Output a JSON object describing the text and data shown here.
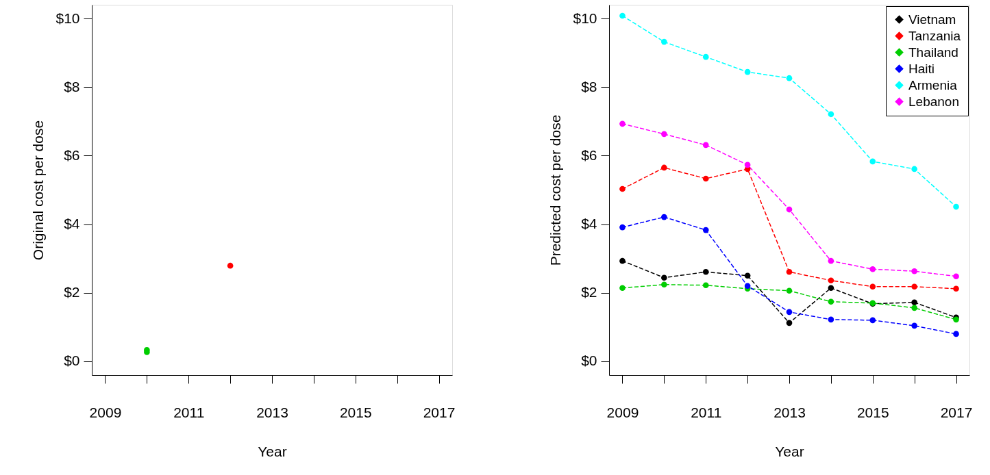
{
  "chart_data": [
    {
      "type": "scatter",
      "xlabel": "Year",
      "ylabel": "Original cost per dose",
      "marker": "circle",
      "grid": false,
      "legend": false,
      "xlim": [
        2008.68,
        2017.32
      ],
      "ylim": [
        -0.4,
        10.4
      ],
      "xticks": [
        2009,
        {
          "value": 2010,
          "label": null
        },
        2011,
        {
          "value": 2012,
          "label": null
        },
        2013,
        {
          "value": 2014,
          "label": null
        },
        2015,
        {
          "value": 2016,
          "label": null
        },
        2017
      ],
      "yticks": [
        {
          "value": 0,
          "label": "$0"
        },
        {
          "value": 2,
          "label": "$2"
        },
        {
          "value": 4,
          "label": "$4"
        },
        {
          "value": 6,
          "label": "$6"
        },
        {
          "value": 8,
          "label": "$8"
        },
        {
          "value": 10,
          "label": "$10"
        }
      ],
      "x": [
        2010,
        2012
      ],
      "series": [
        {
          "color": "#00cd00",
          "values": [
            0.27,
            null
          ]
        },
        {
          "color": "#00cd00",
          "values": [
            0.33,
            null
          ]
        },
        {
          "color": "#ff0000",
          "values": [
            null,
            2.79
          ]
        }
      ]
    },
    {
      "type": "line",
      "xlabel": "Year",
      "ylabel": "Predicted cost per dose",
      "marker": "circle",
      "line_style": "dashed",
      "grid": false,
      "legend": "top right",
      "xlim": [
        2008.68,
        2017.32
      ],
      "ylim": [
        -0.4,
        10.4
      ],
      "xticks": [
        2009,
        {
          "value": 2010,
          "label": null
        },
        2011,
        {
          "value": 2012,
          "label": null
        },
        2013,
        {
          "value": 2014,
          "label": null
        },
        2015,
        {
          "value": 2016,
          "label": null
        },
        2017
      ],
      "yticks": [
        {
          "value": 0,
          "label": "$0"
        },
        {
          "value": 2,
          "label": "$2"
        },
        {
          "value": 4,
          "label": "$4"
        },
        {
          "value": 6,
          "label": "$6"
        },
        {
          "value": 8,
          "label": "$8"
        },
        {
          "value": 10,
          "label": "$10"
        }
      ],
      "x": [
        2009,
        2010,
        2011,
        2012,
        2013,
        2014,
        2015,
        2016,
        2017
      ],
      "series": [
        {
          "name": "Vietnam",
          "color": "#000000",
          "values": [
            2.93,
            2.44,
            2.61,
            2.5,
            1.12,
            2.14,
            1.68,
            1.72,
            1.28
          ]
        },
        {
          "name": "Tanzania",
          "color": "#ff0000",
          "values": [
            5.03,
            5.65,
            5.33,
            5.61,
            2.61,
            2.36,
            2.18,
            2.18,
            2.12
          ]
        },
        {
          "name": "Thailand",
          "color": "#00cd00",
          "values": [
            2.14,
            2.24,
            2.22,
            2.12,
            2.06,
            1.74,
            1.7,
            1.56,
            1.22
          ]
        },
        {
          "name": "Haiti",
          "color": "#0000ff",
          "values": [
            3.91,
            4.21,
            3.83,
            2.2,
            1.44,
            1.22,
            1.2,
            1.04,
            0.8
          ]
        },
        {
          "name": "Armenia",
          "color": "#00ffff",
          "values": [
            10.08,
            9.32,
            8.88,
            8.44,
            8.26,
            7.21,
            5.83,
            5.61,
            4.51
          ]
        },
        {
          "name": "Lebanon",
          "color": "#ff00ff",
          "values": [
            6.93,
            6.63,
            6.31,
            5.73,
            4.43,
            2.93,
            2.69,
            2.63,
            2.48
          ]
        }
      ]
    }
  ]
}
